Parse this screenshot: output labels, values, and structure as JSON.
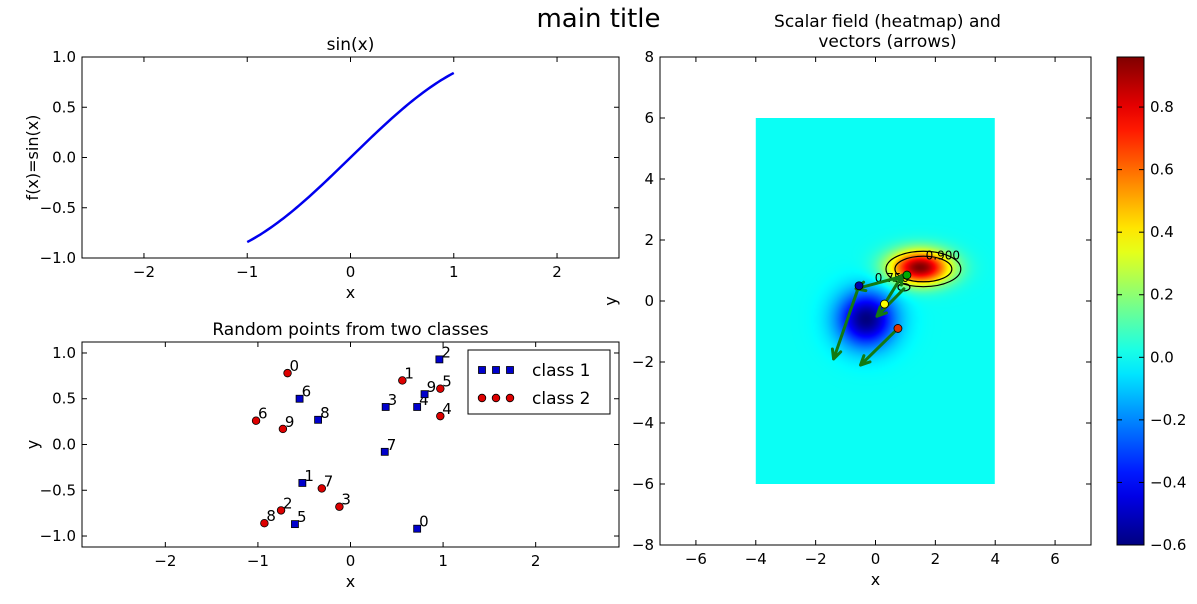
{
  "figure": {
    "suptitle": "main title"
  },
  "chart_data": [
    {
      "type": "line",
      "title": "sin(x)",
      "xlabel": "x",
      "ylabel": "f(x)=sin(x)",
      "xlim": [
        -2.6,
        2.6
      ],
      "ylim": [
        -1.0,
        1.0
      ],
      "xticks": [
        -2,
        -1,
        0,
        1,
        2
      ],
      "yticks": [
        -1.0,
        -0.5,
        0.0,
        0.5,
        1.0
      ],
      "xtick_labels": [
        "−2",
        "−1",
        "0",
        "1",
        "2"
      ],
      "ytick_labels": [
        "−1.0",
        "−0.5",
        "0.0",
        "0.5",
        "1.0"
      ],
      "series": [
        {
          "function": "sin",
          "x_range": [
            -1.0,
            1.0
          ],
          "color": "#0000ee"
        }
      ]
    },
    {
      "type": "scatter",
      "title": "Random points from two classes",
      "xlabel": "x",
      "ylabel": "y",
      "xlim": [
        -2.9,
        2.9
      ],
      "ylim": [
        -1.12,
        1.12
      ],
      "xticks": [
        -2,
        -1,
        0,
        1,
        2
      ],
      "yticks": [
        -1.0,
        -0.5,
        0.0,
        0.5,
        1.0
      ],
      "xtick_labels": [
        "−2",
        "−1",
        "0",
        "1",
        "2"
      ],
      "ytick_labels": [
        "−1.0",
        "−0.5",
        "0.0",
        "0.5",
        "1.0"
      ],
      "legend": {
        "location": "top-right",
        "entries": [
          "class 1",
          "class 2"
        ]
      },
      "series": [
        {
          "name": "class 1",
          "marker": "square",
          "color": "#0000cc",
          "points": [
            {
              "label": "0",
              "x": 0.72,
              "y": -0.92
            },
            {
              "label": "1",
              "x": -0.52,
              "y": -0.42
            },
            {
              "label": "2",
              "x": 0.96,
              "y": 0.93
            },
            {
              "label": "3",
              "x": 0.38,
              "y": 0.41
            },
            {
              "label": "4",
              "x": 0.72,
              "y": 0.41
            },
            {
              "label": "5",
              "x": -0.6,
              "y": -0.87
            },
            {
              "label": "6",
              "x": -0.55,
              "y": 0.5
            },
            {
              "label": "7",
              "x": 0.37,
              "y": -0.08
            },
            {
              "label": "8",
              "x": -0.35,
              "y": 0.27
            },
            {
              "label": "9",
              "x": 0.8,
              "y": 0.55
            }
          ]
        },
        {
          "name": "class 2",
          "marker": "circle",
          "color": "#dd0000",
          "points": [
            {
              "label": "0",
              "x": -0.68,
              "y": 0.78
            },
            {
              "label": "1",
              "x": 0.56,
              "y": 0.7
            },
            {
              "label": "2",
              "x": -0.75,
              "y": -0.72
            },
            {
              "label": "3",
              "x": -0.12,
              "y": -0.68
            },
            {
              "label": "4",
              "x": 0.97,
              "y": 0.31
            },
            {
              "label": "5",
              "x": 0.97,
              "y": 0.61
            },
            {
              "label": "6",
              "x": -1.02,
              "y": 0.26
            },
            {
              "label": "7",
              "x": -0.31,
              "y": -0.48
            },
            {
              "label": "8",
              "x": -0.93,
              "y": -0.86
            },
            {
              "label": "9",
              "x": -0.73,
              "y": 0.17
            }
          ]
        }
      ]
    },
    {
      "type": "heatmap",
      "title": "Scalar field (heatmap) and vectors (arrows)",
      "title_lines": [
        "Scalar field (heatmap) and",
        "vectors (arrows)"
      ],
      "xlabel": "x",
      "ylabel": "y",
      "xlim": [
        -7.2,
        7.2
      ],
      "ylim": [
        -8.0,
        8.0
      ],
      "xticks": [
        -6,
        -4,
        -2,
        0,
        2,
        4,
        6
      ],
      "yticks": [
        -8,
        -6,
        -4,
        -2,
        0,
        2,
        4,
        6,
        8
      ],
      "xtick_labels": [
        "−6",
        "−4",
        "−2",
        "0",
        "2",
        "4",
        "6"
      ],
      "ytick_labels": [
        "−8",
        "−6",
        "−4",
        "−2",
        "0",
        "2",
        "4",
        "6",
        "8"
      ],
      "extent": {
        "x": [
          -4,
          4
        ],
        "y": [
          -6,
          6
        ]
      },
      "field": {
        "peaks": [
          {
            "x": 1.5,
            "y": 1.1,
            "amplitude": 0.96,
            "sx": 1.0,
            "sy": 0.55
          },
          {
            "x": -0.3,
            "y": -0.6,
            "amplitude": -0.6,
            "sx": 0.95,
            "sy": 0.9
          }
        ]
      },
      "colorbar": {
        "range": [
          -0.6,
          0.96
        ],
        "ticks": [
          -0.6,
          -0.4,
          -0.2,
          0.0,
          0.2,
          0.4,
          0.6,
          0.8
        ],
        "tick_labels": [
          "−0.6",
          "−0.4",
          "−0.2",
          "0.0",
          "0.2",
          "0.4",
          "0.6",
          "0.8"
        ]
      },
      "contours": [
        {
          "level": 0.9,
          "label": "0.900",
          "x": 1.6,
          "y": 1.05,
          "rx": 0.95,
          "ry": 0.42,
          "label_x": 2.25,
          "label_y": 1.5
        },
        {
          "level": 0.8,
          "label": "",
          "x": 1.6,
          "y": 1.05,
          "rx": 1.25,
          "ry": 0.58,
          "label_x": 0,
          "label_y": 0
        },
        {
          "level": 0.75,
          "label": "0.750",
          "x": 0.95,
          "y": 0.45,
          "rx": 0.2,
          "ry": 0.12,
          "label_x": 0.55,
          "label_y": 0.75
        }
      ],
      "points": [
        {
          "x": -0.55,
          "y": 0.5,
          "color": "#0000aa"
        },
        {
          "x": 0.3,
          "y": -0.1,
          "color": "#ffff00"
        },
        {
          "x": 0.75,
          "y": -0.9,
          "color": "#dd3300"
        },
        {
          "x": 1.05,
          "y": 0.85,
          "color": "#00aa00"
        }
      ],
      "vectors": [
        {
          "x": -0.55,
          "y": 0.5,
          "dx": -0.85,
          "dy": -2.4
        },
        {
          "x": 0.75,
          "y": -0.9,
          "dx": -1.25,
          "dy": -1.2
        },
        {
          "x": 0.3,
          "y": -0.1,
          "dx": 0.6,
          "dy": 0.95
        },
        {
          "x": 1.05,
          "y": 0.85,
          "dx": -1.7,
          "dy": -0.45
        },
        {
          "x": 0.95,
          "y": 0.4,
          "dx": -0.9,
          "dy": -0.9
        }
      ]
    }
  ]
}
